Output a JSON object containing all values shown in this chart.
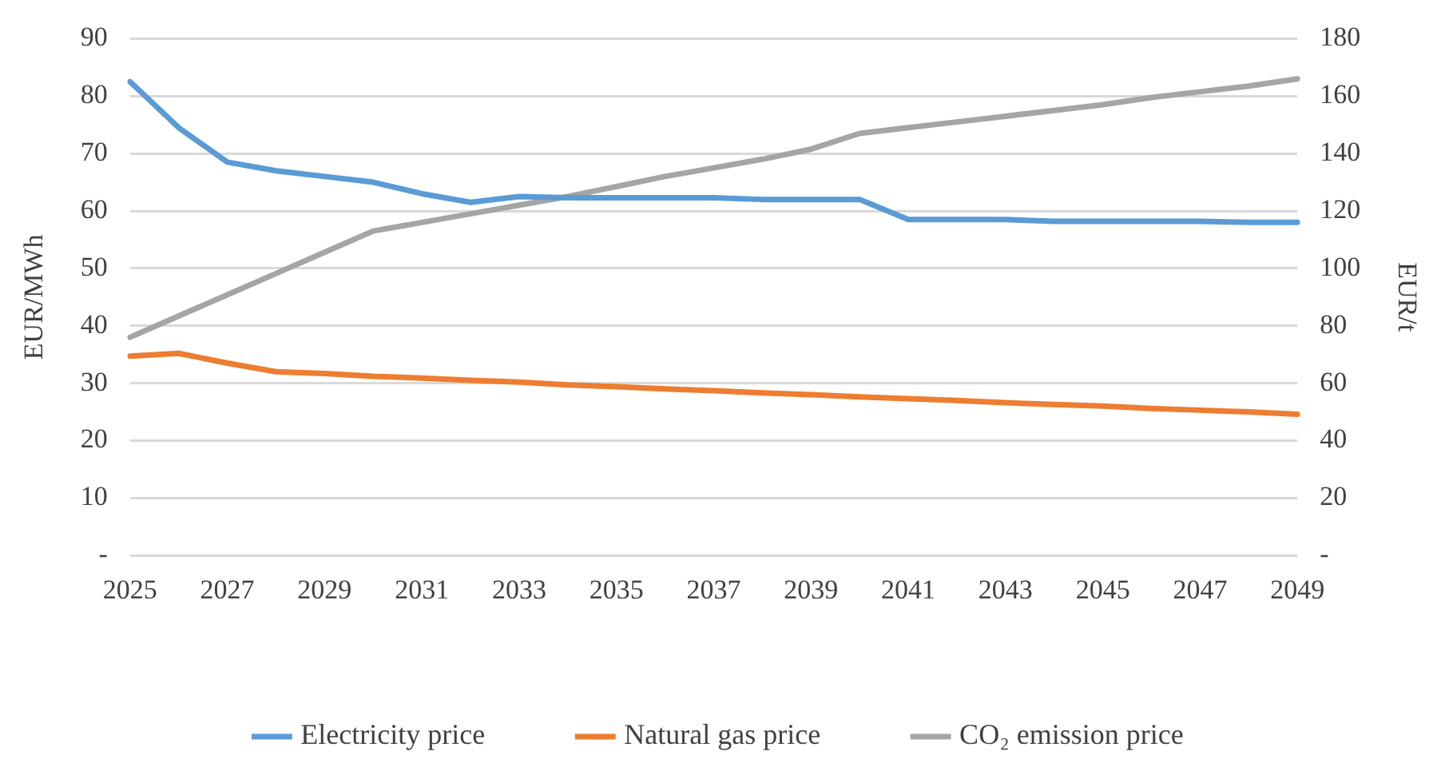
{
  "chart_data": {
    "type": "line",
    "ylabel": "EUR/MWh",
    "y2label": "EUR/t",
    "categories": [
      "2025",
      null,
      "2027",
      null,
      "2029",
      null,
      "2031",
      null,
      "2033",
      null,
      "2035",
      null,
      "2037",
      null,
      "2039",
      null,
      "2041",
      null,
      "2043",
      null,
      "2045",
      null,
      "2047",
      null,
      "2049"
    ],
    "series": [
      {
        "name": "Electricity price",
        "color": "#5b9bd5",
        "values": [
          82.5,
          74.5,
          68.5,
          67,
          66,
          65,
          63,
          61.5,
          62.5,
          62.3,
          62.3,
          62.3,
          62.3,
          62,
          62,
          62,
          58.5,
          58.5,
          58.5,
          58.2,
          58.2,
          58.2,
          58.2,
          58,
          58
        ]
      },
      {
        "name": "Natural gas price",
        "color": "#ed7d31",
        "values": [
          34.7,
          35.2,
          33.5,
          32,
          31.7,
          31.2,
          30.9,
          30.5,
          30.2,
          29.7,
          29.4,
          29,
          28.7,
          28.3,
          28,
          27.6,
          27.3,
          27,
          26.6,
          26.3,
          26,
          25.6,
          25.3,
          25,
          24.6
        ]
      },
      {
        "name": "CO₂ emission price",
        "color": "#a5a5a5",
        "axis": "y2",
        "values": [
          76,
          83.4,
          90.8,
          98.2,
          105.6,
          113,
          116,
          119,
          122,
          125,
          128.5,
          132,
          135,
          138,
          141.5,
          147,
          149,
          151,
          153,
          155,
          157,
          159.5,
          161.5,
          163.5,
          166
        ]
      }
    ],
    "ylim": [
      0,
      90
    ],
    "yticks": [
      {
        "value": 0,
        "label": "-"
      },
      10,
      20,
      30,
      40,
      50,
      60,
      70,
      80,
      90
    ],
    "y2lim": [
      0,
      180
    ],
    "y2ticks": [
      {
        "value": 0,
        "label": "-"
      },
      20,
      40,
      60,
      80,
      100,
      120,
      140,
      160,
      180
    ],
    "grid": "y",
    "legend": "bottom",
    "marker": "none",
    "line_style": "solid"
  }
}
